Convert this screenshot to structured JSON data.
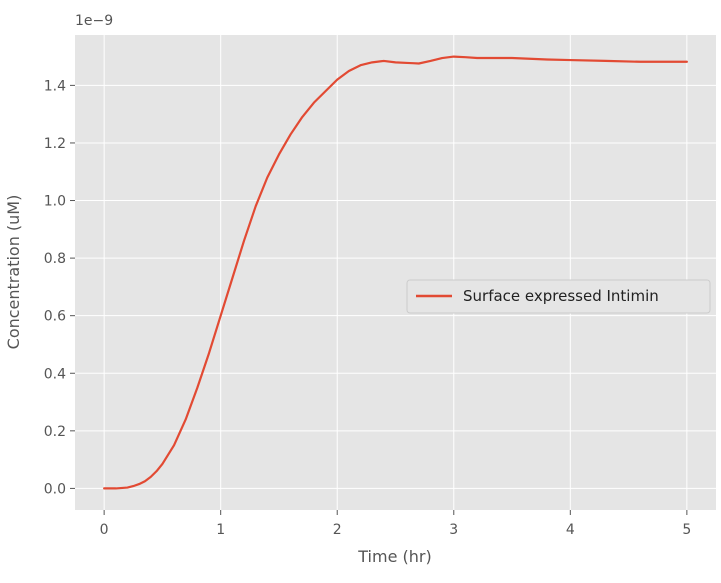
{
  "chart_data": {
    "type": "line",
    "title": "",
    "xlabel": "Time (hr)",
    "ylabel": "Concentration (uM)",
    "y_offset_text": "1e−9",
    "xlim": [
      -0.25,
      5.25
    ],
    "ylim": [
      -0.075,
      1.575
    ],
    "xticks": [
      0,
      1,
      2,
      3,
      4,
      5
    ],
    "xtick_labels": [
      "0",
      "1",
      "2",
      "3",
      "4",
      "5"
    ],
    "yticks": [
      0.0,
      0.2,
      0.4,
      0.6,
      0.8,
      1.0,
      1.2,
      1.4
    ],
    "ytick_labels": [
      "0.0",
      "0.2",
      "0.4",
      "0.6",
      "0.8",
      "1.0",
      "1.2",
      "1.4"
    ],
    "grid": true,
    "style": "ggplot",
    "legend_position": "center right",
    "series": [
      {
        "name": "Surface expressed Intimin",
        "color": "#E24A33",
        "x": [
          0,
          0.1,
          0.2,
          0.25,
          0.3,
          0.35,
          0.4,
          0.45,
          0.5,
          0.6,
          0.7,
          0.8,
          0.9,
          1.0,
          1.1,
          1.2,
          1.3,
          1.4,
          1.5,
          1.6,
          1.7,
          1.8,
          1.9,
          2.0,
          2.1,
          2.2,
          2.3,
          2.4,
          2.5,
          2.6,
          2.65,
          2.7,
          2.8,
          2.9,
          3.0,
          3.1,
          3.2,
          3.3,
          3.5,
          3.8,
          4.0,
          4.3,
          4.6,
          5.0
        ],
        "y": [
          0.0,
          0.0,
          0.003,
          0.008,
          0.015,
          0.025,
          0.04,
          0.06,
          0.085,
          0.15,
          0.24,
          0.35,
          0.47,
          0.6,
          0.73,
          0.86,
          0.98,
          1.08,
          1.16,
          1.23,
          1.29,
          1.34,
          1.38,
          1.42,
          1.45,
          1.47,
          1.48,
          1.485,
          1.48,
          1.478,
          1.477,
          1.476,
          1.485,
          1.495,
          1.5,
          1.498,
          1.495,
          1.495,
          1.495,
          1.49,
          1.488,
          1.485,
          1.482,
          1.482
        ]
      }
    ]
  }
}
